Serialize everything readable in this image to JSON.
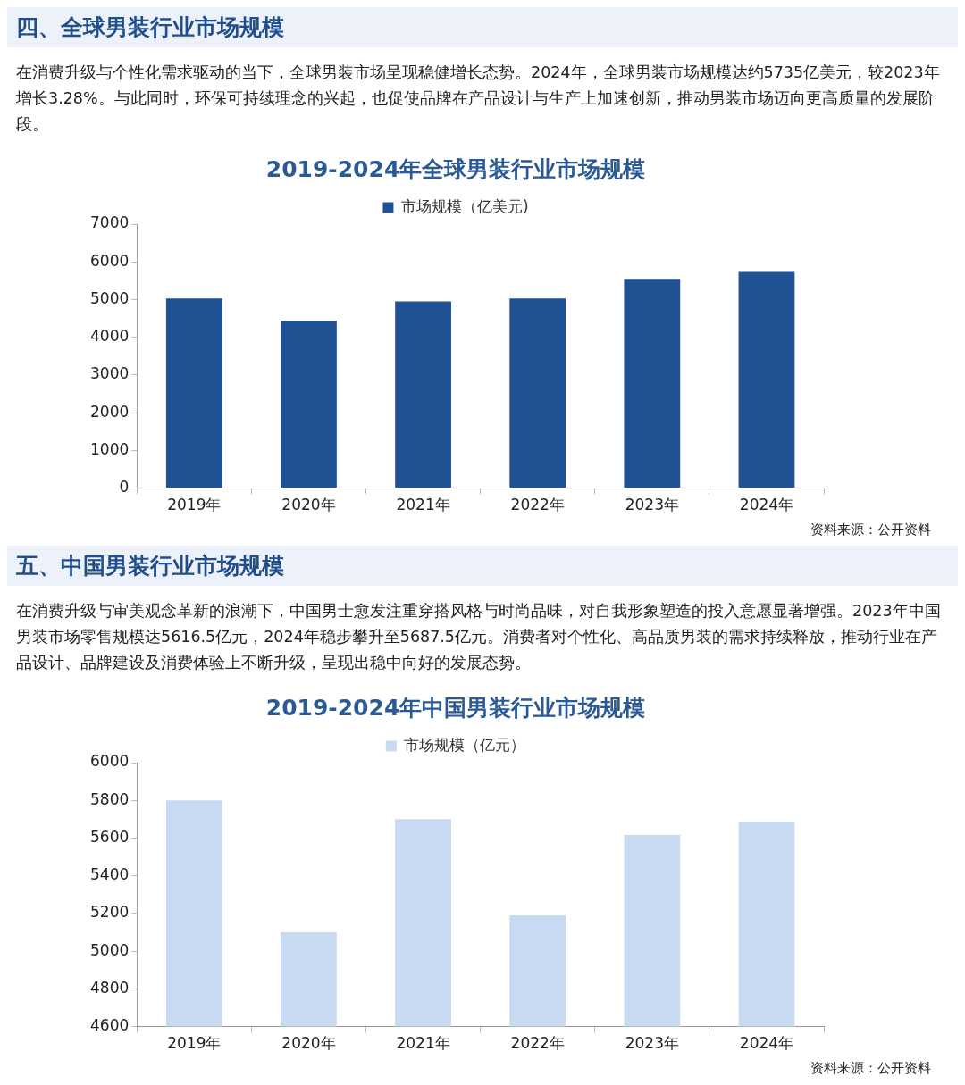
{
  "chart_data": [
    {
      "type": "bar",
      "title": "2019-2024年全球男装行业市场规模",
      "categories": [
        "2019年",
        "2020年",
        "2021年",
        "2022年",
        "2023年",
        "2024年"
      ],
      "series": [
        {
          "name": "市场规模（亿美元)",
          "color": "#1f5193",
          "values": [
            5030,
            4440,
            4950,
            5030,
            5550,
            5735
          ]
        }
      ],
      "ylim": [
        0,
        7000
      ],
      "yticks": [
        0,
        1000,
        2000,
        3000,
        4000,
        5000,
        6000,
        7000
      ],
      "grid": false,
      "legend": "top",
      "annotations": [
        "四、全球男装行业市场规模",
        "在消费升级与个性化需求驱动的当下，全球男装市场呈现稳健增长态势。2024年，全球男装市场规模达约5735亿美元，较2023年增长3.28%。与此同时，环保可持续理念的兴起，也促使品牌在产品设计与生产上加速创新，推动男装市场迈向更高质量的发展阶段。",
        "资料来源：公开资料"
      ]
    },
    {
      "type": "bar",
      "title": "2019-2024年中国男装行业市场规模",
      "categories": [
        "2019年",
        "2020年",
        "2021年",
        "2022年",
        "2023年",
        "2024年"
      ],
      "series": [
        {
          "name": "市场规模（亿元）",
          "color": "#c8daf2",
          "values": [
            5800,
            5100,
            5700,
            5190,
            5616.5,
            5687.5
          ]
        }
      ],
      "ylim": [
        4600,
        6000
      ],
      "yticks": [
        4600,
        4800,
        5000,
        5200,
        5400,
        5600,
        5800,
        6000
      ],
      "grid": false,
      "legend": "top",
      "annotations": [
        "五、中国男装行业市场规模",
        "在消费升级与审美观念革新的浪潮下，中国男士愈发注重穿搭风格与时尚品味，对自我形象塑造的投入意愿显著增强。2023年中国男装市场零售规模达5616.5亿元，2024年稳步攀升至5687.5亿元。消费者对个性化、高品质男装的需求持续释放，推动行业在产品设计、品牌建设及消费体验上不断升级，呈现出稳中向好的发展态势。",
        "资料来源：公开资料"
      ]
    }
  ]
}
